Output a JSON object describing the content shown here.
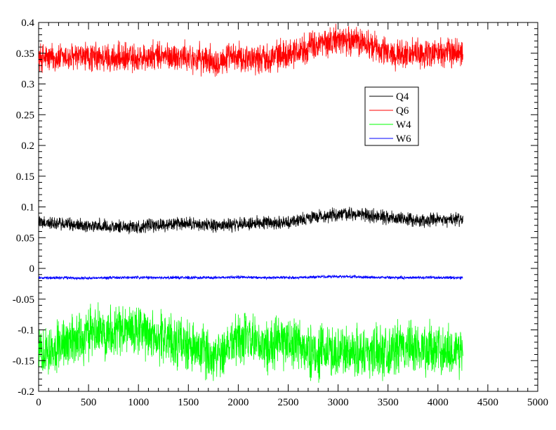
{
  "chart_data": {
    "type": "line",
    "title": "",
    "xlabel": "",
    "ylabel": "",
    "xlim": [
      0,
      5000
    ],
    "ylim": [
      -0.2,
      0.4
    ],
    "grid": false,
    "legend_placement": "upper-right-center",
    "x_ticks": [
      "0",
      "500",
      "1000",
      "1500",
      "2000",
      "2500",
      "3000",
      "3500",
      "4000",
      "4500",
      "5000"
    ],
    "y_ticks": [
      "-0.2",
      "-0.15",
      "-0.1",
      "-0.05",
      "0",
      "0.05",
      "0.1",
      "0.15",
      "0.2",
      "0.25",
      "0.3",
      "0.35",
      "0.4"
    ],
    "x": [
      0,
      250,
      500,
      750,
      1000,
      1250,
      1500,
      1750,
      2000,
      2250,
      2500,
      2750,
      3000,
      3250,
      3500,
      3750,
      4000,
      4250
    ],
    "series": [
      {
        "name": "Q4",
        "color": "#000000",
        "values": [
          0.075,
          0.072,
          0.07,
          0.068,
          0.068,
          0.071,
          0.072,
          0.07,
          0.071,
          0.075,
          0.075,
          0.083,
          0.088,
          0.087,
          0.083,
          0.078,
          0.078,
          0.08
        ],
        "noise": 0.009
      },
      {
        "name": "Q6",
        "color": "#ff0000",
        "values": [
          0.343,
          0.342,
          0.343,
          0.342,
          0.342,
          0.345,
          0.343,
          0.338,
          0.343,
          0.342,
          0.35,
          0.362,
          0.372,
          0.368,
          0.35,
          0.348,
          0.35,
          0.352
        ],
        "noise": 0.02
      },
      {
        "name": "W4",
        "color": "#00ff00",
        "values": [
          -0.135,
          -0.122,
          -0.108,
          -0.098,
          -0.103,
          -0.113,
          -0.128,
          -0.143,
          -0.112,
          -0.128,
          -0.118,
          -0.138,
          -0.135,
          -0.135,
          -0.133,
          -0.128,
          -0.133,
          -0.135
        ],
        "noise": 0.035
      },
      {
        "name": "W6",
        "color": "#0000ff",
        "values": [
          -0.015,
          -0.015,
          -0.016,
          -0.015,
          -0.015,
          -0.015,
          -0.015,
          -0.015,
          -0.014,
          -0.015,
          -0.015,
          -0.014,
          -0.013,
          -0.014,
          -0.015,
          -0.015,
          -0.015,
          -0.015
        ],
        "noise": 0.002
      }
    ]
  }
}
